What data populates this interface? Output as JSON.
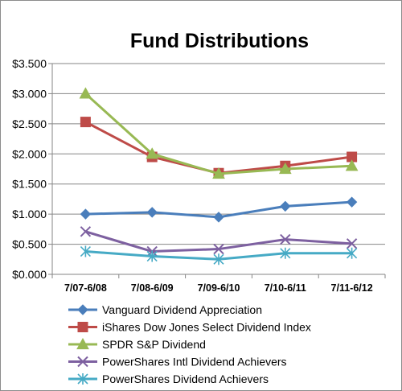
{
  "chart_data": {
    "type": "line",
    "title": "Fund Distributions",
    "xlabel": "",
    "ylabel": "",
    "categories": [
      "7/07-6/08",
      "7/08-6/09",
      "7/09-6/10",
      "7/10-6/11",
      "7/11-6/12"
    ],
    "ylim": [
      0,
      3.5
    ],
    "yticks": [
      0,
      0.5,
      1.0,
      1.5,
      2.0,
      2.5,
      3.0,
      3.5
    ],
    "ytick_labels": [
      "$0.000",
      "$0.500",
      "$1.000",
      "$1.500",
      "$2.000",
      "$2.500",
      "$3.000",
      "$3.500"
    ],
    "grid": "horizontal",
    "legend_position": "bottom",
    "series": [
      {
        "name": "Vanguard Dividend Appreciation",
        "values": [
          1.0,
          1.03,
          0.95,
          1.13,
          1.2
        ],
        "color": "#4a7ebb",
        "marker": "diamond"
      },
      {
        "name": "iShares Dow Jones Select Dividend Index",
        "values": [
          2.53,
          1.95,
          1.68,
          1.8,
          1.95
        ],
        "color": "#be4b48",
        "marker": "square"
      },
      {
        "name": "SPDR S&P Dividend",
        "values": [
          3.0,
          2.0,
          1.67,
          1.75,
          1.8
        ],
        "color": "#98b954",
        "marker": "triangle"
      },
      {
        "name": "PowerShares Intl Dividend Achievers",
        "values": [
          0.71,
          0.38,
          0.42,
          0.58,
          0.51
        ],
        "color": "#7d60a0",
        "marker": "x"
      },
      {
        "name": "PowerShares Dividend Achievers",
        "values": [
          0.38,
          0.3,
          0.25,
          0.35,
          0.35
        ],
        "color": "#46aac5",
        "marker": "star"
      }
    ]
  }
}
